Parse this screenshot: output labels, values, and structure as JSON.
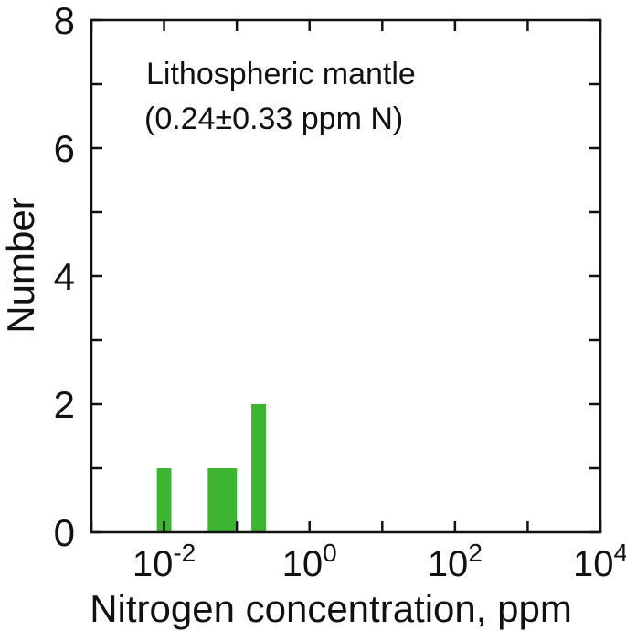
{
  "chart_data": {
    "type": "bar",
    "x_scale": "log10",
    "xlabel": "Nitrogen concentration, ppm",
    "ylabel": "Number",
    "annotation_lines": [
      "Lithospheric mantle",
      "(0.24±0.33 ppm N)"
    ],
    "xlim_log10": [
      -3,
      4
    ],
    "ylim": [
      0,
      8
    ],
    "x_ticks": [
      {
        "base": "10",
        "exp": "-2",
        "log10": -2
      },
      {
        "base": "10",
        "exp": "0",
        "log10": 0
      },
      {
        "base": "10",
        "exp": "2",
        "log10": 2
      },
      {
        "base": "10",
        "exp": "4",
        "log10": 4
      }
    ],
    "y_ticks": [
      0,
      2,
      4,
      6,
      8
    ],
    "y_minor_step": 1,
    "bins": [
      {
        "log10_from": -2.1,
        "log10_to": -1.9,
        "count": 1
      },
      {
        "log10_from": -1.4,
        "log10_to": -1.2,
        "count": 1
      },
      {
        "log10_from": -1.3,
        "log10_to": -1.0,
        "count": 1
      },
      {
        "log10_from": -0.8,
        "log10_to": -0.6,
        "count": 2
      }
    ],
    "bar_color": "#3cb531",
    "grid": false,
    "legend": "none"
  }
}
